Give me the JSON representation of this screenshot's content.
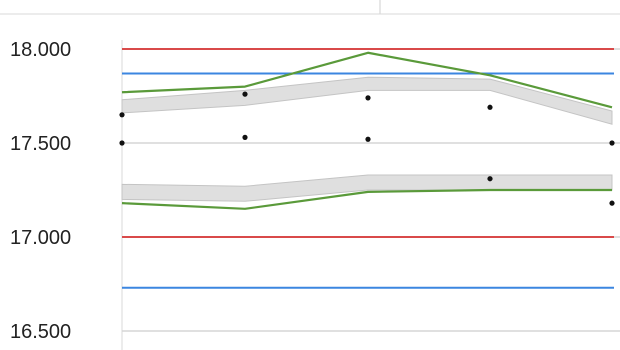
{
  "chart_data": {
    "type": "line",
    "title": "",
    "xlabel": "",
    "ylabel": "",
    "ylim": [
      16.5,
      18.0
    ],
    "grid": true,
    "legend": "none",
    "y_ticks": [
      {
        "value": 18.0,
        "label": "18.000"
      },
      {
        "value": 17.5,
        "label": "17.500"
      },
      {
        "value": 17.0,
        "label": "17.000"
      },
      {
        "value": 16.5,
        "label": "16.500"
      }
    ],
    "x": [
      1,
      2,
      3,
      4,
      5
    ],
    "reference_lines": [
      {
        "value": 18.0,
        "color": "#d94a4a"
      },
      {
        "value": 17.87,
        "color": "#3b86e0"
      },
      {
        "value": 17.0,
        "color": "#d94a4a"
      },
      {
        "value": 16.73,
        "color": "#3b86e0"
      }
    ],
    "series": [
      {
        "color": "#5a9a3a",
        "values": [
          17.77,
          17.8,
          17.98,
          17.86,
          17.69
        ]
      },
      {
        "color": "#5a9a3a",
        "values": [
          17.18,
          17.15,
          17.24,
          17.25,
          17.25
        ]
      }
    ],
    "bands": [
      {
        "color": "#d9d9d9",
        "upper": [
          17.73,
          17.78,
          17.85,
          17.84,
          17.67
        ],
        "lower": [
          17.66,
          17.7,
          17.78,
          17.78,
          17.6
        ]
      },
      {
        "color": "#d9d9d9",
        "upper": [
          17.28,
          17.27,
          17.33,
          17.33,
          17.33
        ],
        "lower": [
          17.2,
          17.19,
          17.25,
          17.25,
          17.25
        ]
      }
    ],
    "points": [
      {
        "x": 1,
        "y": 17.65
      },
      {
        "x": 1,
        "y": 17.5
      },
      {
        "x": 2,
        "y": 17.76
      },
      {
        "x": 2,
        "y": 17.53
      },
      {
        "x": 3,
        "y": 17.74
      },
      {
        "x": 3,
        "y": 17.52
      },
      {
        "x": 4,
        "y": 17.69
      },
      {
        "x": 4,
        "y": 17.31
      },
      {
        "x": 5,
        "y": 17.5
      },
      {
        "x": 5,
        "y": 17.18
      }
    ]
  }
}
